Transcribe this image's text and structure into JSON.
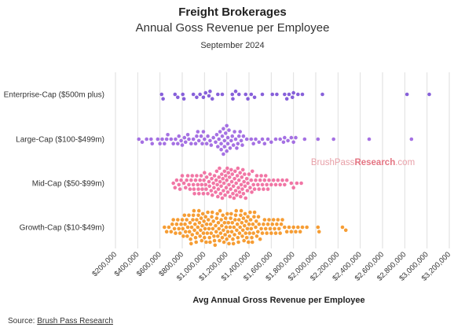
{
  "header": {
    "title": "Freight Brokerages",
    "subtitle": "Annual Goss Revenue per Employee",
    "date": "September 2024"
  },
  "watermark": {
    "part1": "BrushPass",
    "part2": "Research",
    "part3": ".com"
  },
  "source": {
    "label": "Source:",
    "link_text": "Brush Pass Research"
  },
  "colors": {
    "Enterprise-Cap ($500m plus)": "#7a4fd6",
    "Large-Cap ($100-$499m)": "#9b62e0",
    "Mid-Cap ($50-$99m)": "#f0679b",
    "Growth-Cap ($10-$49m)": "#f5921e",
    "grid": "#dedede",
    "watermark1": "#e8a0a8",
    "watermark2": "#e47583"
  },
  "chart_data": {
    "type": "scatter",
    "subtype": "beeswarm",
    "xlabel": "Avg Annual Gross Revenue per Employee",
    "xlim": [
      200000,
      3200000
    ],
    "x_ticks": [
      200000,
      400000,
      600000,
      800000,
      1000000,
      1200000,
      1400000,
      1600000,
      1800000,
      2000000,
      2200000,
      2400000,
      2600000,
      2800000,
      3000000,
      3200000
    ],
    "x_tick_labels": [
      "$200,000",
      "$400,000",
      "$600,000",
      "$800,000",
      "$1,000,000",
      "$1,200,000",
      "$1,400,000",
      "$1,600,000",
      "$1,800,000",
      "$2,000,000",
      "$2,200,000",
      "$2,400,000",
      "$2,600,000",
      "$2,800,000",
      "$3,000,000",
      "$3,200,000"
    ],
    "grid": true,
    "categories": [
      "Enterprise-Cap ($500m plus)",
      "Large-Cap ($100-$499m)",
      "Mid-Cap ($50-$99m)",
      "Growth-Cap ($10-$49m)"
    ],
    "series": [
      {
        "name": "Enterprise-Cap ($500m plus)",
        "values": [
          615000,
          628000,
          735000,
          760000,
          805000,
          815000,
          900000,
          930000,
          960000,
          990000,
          1010000,
          1040000,
          1050000,
          1070000,
          1120000,
          1160000,
          1250000,
          1255000,
          1280000,
          1310000,
          1370000,
          1390000,
          1420000,
          1450000,
          1520000,
          1610000,
          1650000,
          1720000,
          1740000,
          1760000,
          1790000,
          1800000,
          1840000,
          1880000,
          2060000,
          2820000,
          3020000
        ]
      },
      {
        "name": "Large-Cap ($100-$499m)",
        "values": [
          410000,
          440000,
          480000,
          520000,
          530000,
          580000,
          600000,
          620000,
          640000,
          660000,
          670000,
          700000,
          720000,
          740000,
          760000,
          770000,
          790000,
          800000,
          820000,
          830000,
          850000,
          860000,
          880000,
          900000,
          920000,
          930000,
          940000,
          950000,
          970000,
          980000,
          990000,
          1000000,
          1020000,
          1030000,
          1050000,
          1060000,
          1080000,
          1100000,
          1110000,
          1120000,
          1130000,
          1140000,
          1150000,
          1150000,
          1160000,
          1170000,
          1170000,
          1180000,
          1180000,
          1190000,
          1200000,
          1200000,
          1210000,
          1210000,
          1220000,
          1230000,
          1240000,
          1250000,
          1260000,
          1270000,
          1280000,
          1290000,
          1300000,
          1310000,
          1320000,
          1330000,
          1340000,
          1350000,
          1380000,
          1420000,
          1440000,
          1460000,
          1490000,
          1520000,
          1540000,
          1570000,
          1600000,
          1640000,
          1680000,
          1710000,
          1720000,
          1750000,
          1780000,
          1800000,
          1820000,
          1900000,
          2020000,
          2160000,
          2480000,
          2860000
        ]
      },
      {
        "name": "Mid-Cap ($50-$99m)",
        "values": [
          720000,
          735000,
          750000,
          770000,
          780000,
          790000,
          800000,
          815000,
          830000,
          840000,
          850000,
          860000,
          870000,
          880000,
          890000,
          900000,
          905000,
          910000,
          920000,
          930000,
          940000,
          945000,
          950000,
          960000,
          970000,
          975000,
          980000,
          990000,
          995000,
          1000000,
          1010000,
          1015000,
          1020000,
          1030000,
          1040000,
          1045000,
          1050000,
          1060000,
          1065000,
          1070000,
          1080000,
          1085000,
          1090000,
          1100000,
          1105000,
          1110000,
          1115000,
          1120000,
          1125000,
          1130000,
          1135000,
          1140000,
          1145000,
          1150000,
          1155000,
          1160000,
          1165000,
          1170000,
          1175000,
          1180000,
          1185000,
          1190000,
          1195000,
          1200000,
          1205000,
          1210000,
          1215000,
          1220000,
          1225000,
          1230000,
          1235000,
          1240000,
          1245000,
          1250000,
          1255000,
          1260000,
          1265000,
          1270000,
          1275000,
          1280000,
          1285000,
          1290000,
          1295000,
          1300000,
          1305000,
          1310000,
          1315000,
          1320000,
          1325000,
          1330000,
          1335000,
          1340000,
          1345000,
          1350000,
          1355000,
          1360000,
          1365000,
          1370000,
          1380000,
          1385000,
          1390000,
          1400000,
          1410000,
          1420000,
          1425000,
          1430000,
          1440000,
          1450000,
          1460000,
          1470000,
          1480000,
          1490000,
          1500000,
          1510000,
          1520000,
          1530000,
          1540000,
          1550000,
          1560000,
          1570000,
          1580000,
          1600000,
          1620000,
          1640000,
          1660000,
          1680000,
          1700000,
          1720000,
          1740000,
          1780000,
          1800000,
          1830000,
          1870000
        ]
      },
      {
        "name": "Growth-Cap ($10-$49m)",
        "values": [
          640000,
          660000,
          680000,
          700000,
          710000,
          720000,
          730000,
          740000,
          750000,
          760000,
          770000,
          780000,
          790000,
          800000,
          805000,
          810000,
          820000,
          825000,
          830000,
          840000,
          845000,
          850000,
          860000,
          865000,
          870000,
          875000,
          880000,
          885000,
          890000,
          895000,
          900000,
          905000,
          910000,
          915000,
          920000,
          925000,
          930000,
          935000,
          940000,
          945000,
          950000,
          955000,
          960000,
          965000,
          970000,
          975000,
          980000,
          985000,
          990000,
          995000,
          1000000,
          1005000,
          1010000,
          1015000,
          1020000,
          1025000,
          1030000,
          1035000,
          1040000,
          1045000,
          1050000,
          1055000,
          1060000,
          1065000,
          1070000,
          1075000,
          1080000,
          1085000,
          1090000,
          1095000,
          1100000,
          1105000,
          1110000,
          1115000,
          1120000,
          1125000,
          1130000,
          1135000,
          1140000,
          1145000,
          1150000,
          1155000,
          1160000,
          1165000,
          1170000,
          1175000,
          1180000,
          1185000,
          1190000,
          1195000,
          1200000,
          1205000,
          1210000,
          1215000,
          1220000,
          1225000,
          1230000,
          1235000,
          1240000,
          1245000,
          1250000,
          1255000,
          1260000,
          1265000,
          1270000,
          1275000,
          1280000,
          1285000,
          1290000,
          1295000,
          1300000,
          1305000,
          1310000,
          1315000,
          1320000,
          1325000,
          1330000,
          1335000,
          1340000,
          1345000,
          1350000,
          1355000,
          1360000,
          1365000,
          1370000,
          1375000,
          1380000,
          1385000,
          1390000,
          1395000,
          1400000,
          1405000,
          1410000,
          1415000,
          1420000,
          1425000,
          1430000,
          1435000,
          1440000,
          1445000,
          1450000,
          1460000,
          1465000,
          1470000,
          1480000,
          1485000,
          1490000,
          1500000,
          1510000,
          1520000,
          1530000,
          1540000,
          1550000,
          1560000,
          1570000,
          1580000,
          1590000,
          1600000,
          1610000,
          1620000,
          1630000,
          1640000,
          1650000,
          1660000,
          1670000,
          1680000,
          1690000,
          1700000,
          1720000,
          1740000,
          1760000,
          1780000,
          1800000,
          1820000,
          1840000,
          1860000,
          1880000,
          1920000,
          2020000,
          2030000,
          2240000,
          2270000
        ]
      }
    ]
  }
}
